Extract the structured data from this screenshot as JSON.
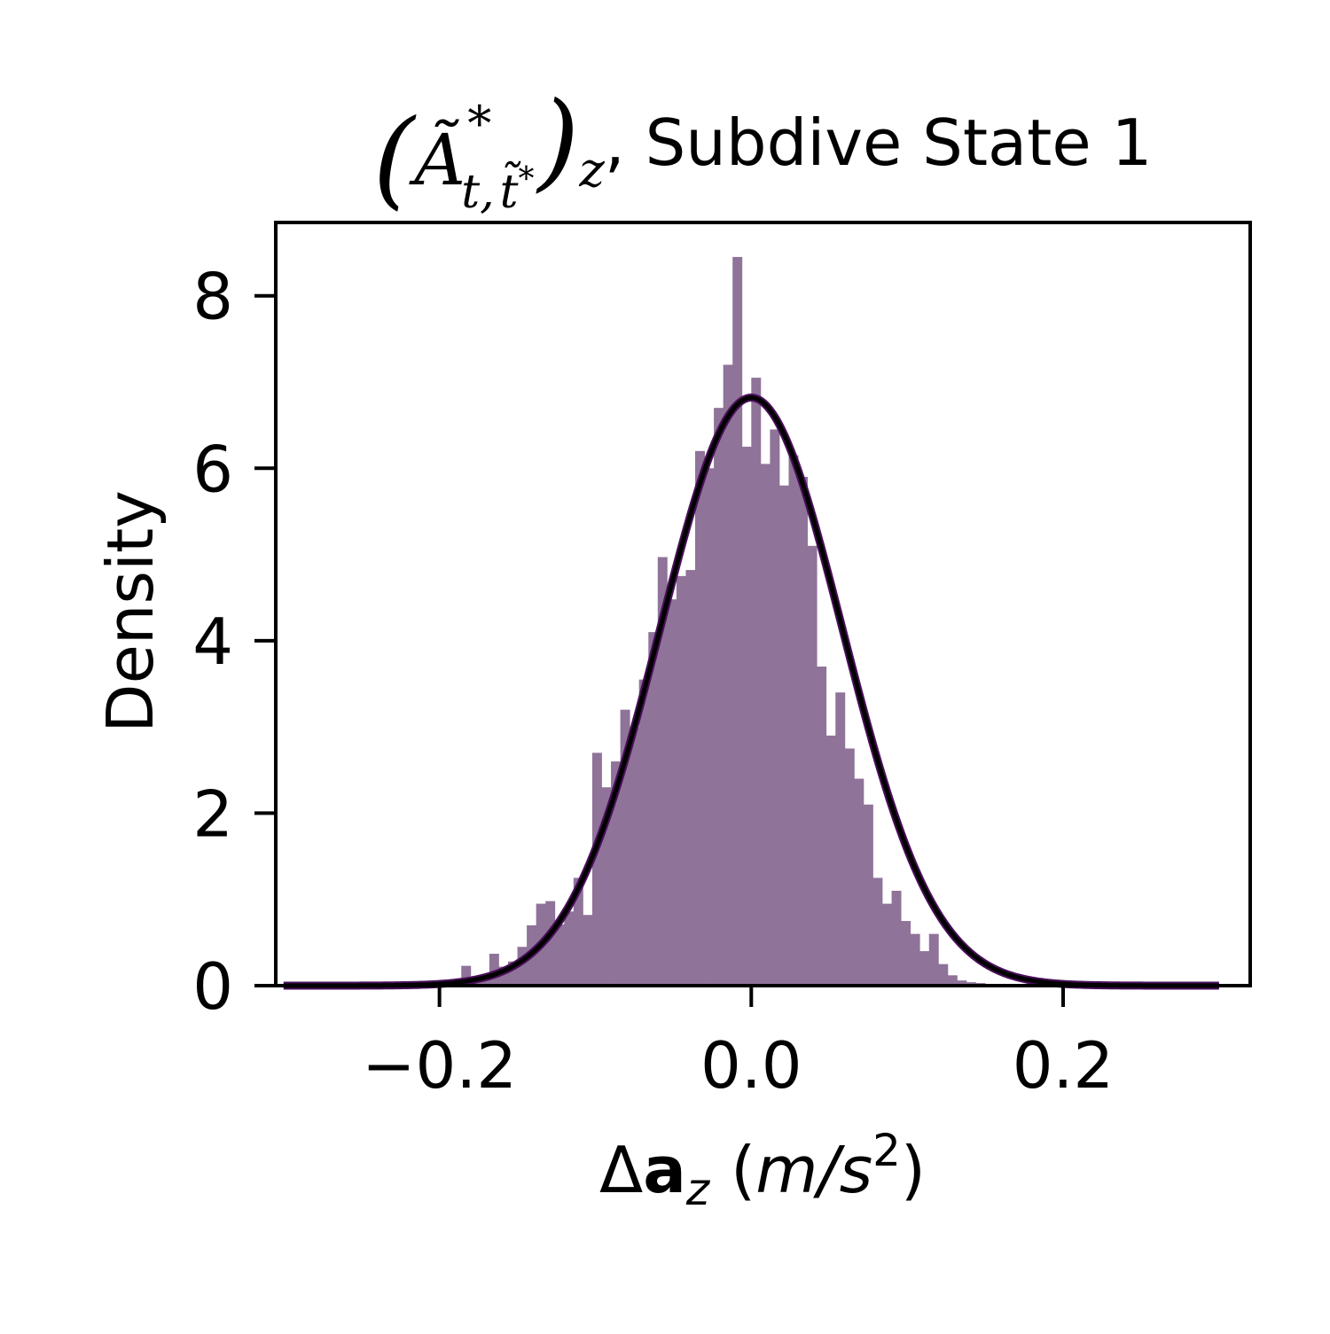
{
  "chart_data": {
    "type": "bar",
    "title": {
      "paren_open": "(",
      "symbol": "Ã",
      "superscript": "*",
      "subscript_t": "t,",
      "subscript_tstar": "t̃",
      "subscript_tstar_sup": "*",
      "paren_close": ")",
      "outer_subscript": "z",
      "text": ", Subdive State 1"
    },
    "xlabel": {
      "delta": "Δ",
      "symbol": "a",
      "subscript": "z",
      "unit_open": "(",
      "unit_m": "m",
      "unit_sep": "/",
      "unit_s": "s",
      "unit_exp": "2",
      "unit_close": ")"
    },
    "ylabel": "Density",
    "xlim": [
      -0.305,
      0.32
    ],
    "ylim": [
      0,
      8.85
    ],
    "xticks": [
      {
        "value": -0.2,
        "label": "−0.2"
      },
      {
        "value": 0.0,
        "label": "0.0"
      },
      {
        "value": 0.2,
        "label": "0.2"
      }
    ],
    "yticks": [
      {
        "value": 0,
        "label": "0"
      },
      {
        "value": 2,
        "label": "2"
      },
      {
        "value": 4,
        "label": "4"
      },
      {
        "value": 6,
        "label": "6"
      },
      {
        "value": 8,
        "label": "8"
      }
    ],
    "histogram": {
      "color": "#8f7399",
      "bin_width": 0.006,
      "bin_left_edges": [
        -0.186,
        -0.18,
        -0.174,
        -0.168,
        -0.162,
        -0.156,
        -0.15,
        -0.144,
        -0.138,
        -0.132,
        -0.126,
        -0.12,
        -0.114,
        -0.108,
        -0.102,
        -0.096,
        -0.09,
        -0.084,
        -0.078,
        -0.072,
        -0.066,
        -0.06,
        -0.054,
        -0.048,
        -0.042,
        -0.036,
        -0.03,
        -0.024,
        -0.018,
        -0.012,
        -0.006,
        0.0,
        0.006,
        0.012,
        0.018,
        0.024,
        0.03,
        0.036,
        0.042,
        0.048,
        0.054,
        0.06,
        0.066,
        0.072,
        0.078,
        0.084,
        0.09,
        0.096,
        0.102,
        0.108,
        0.114,
        0.12,
        0.126,
        0.132,
        0.138,
        0.144,
        0.15,
        0.156
      ],
      "densities": [
        0.23,
        0.08,
        0.13,
        0.37,
        0.22,
        0.28,
        0.45,
        0.7,
        0.95,
        0.98,
        0.71,
        0.86,
        1.25,
        0.82,
        2.7,
        2.3,
        2.6,
        3.2,
        3.0,
        3.55,
        4.1,
        4.97,
        4.48,
        4.75,
        4.82,
        6.2,
        6.0,
        6.7,
        7.2,
        8.45,
        6.25,
        7.05,
        6.05,
        6.45,
        5.8,
        6.15,
        5.9,
        5.1,
        3.7,
        2.9,
        3.4,
        2.75,
        2.4,
        2.1,
        1.25,
        0.95,
        1.1,
        0.75,
        0.6,
        0.4,
        0.6,
        0.25,
        0.12,
        0.06,
        0.04,
        0.03,
        0.02,
        0.01
      ]
    },
    "fit_curve": {
      "type": "normal_pdf",
      "mean": 0.0,
      "std": 0.0585,
      "x_range": [
        -0.3,
        0.3
      ],
      "line_color": "#000000",
      "edge_color": "#4a0f5a"
    },
    "grid": false,
    "legend": "none"
  }
}
